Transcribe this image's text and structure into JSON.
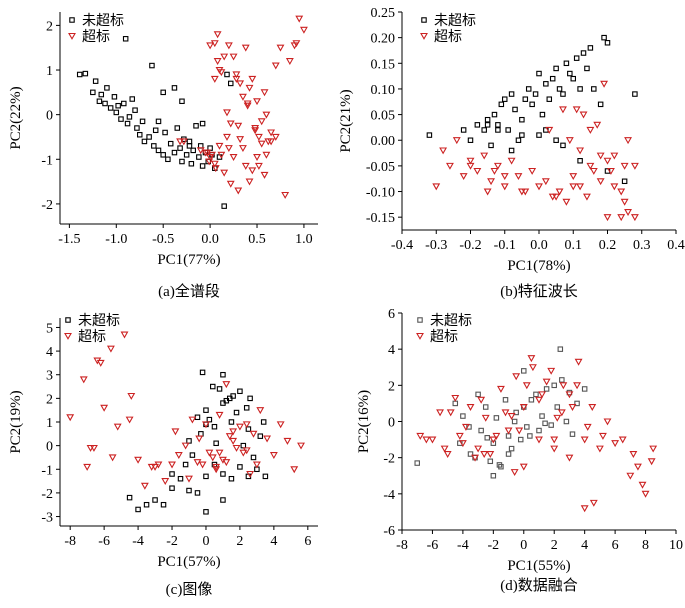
{
  "chart_data": [
    {
      "type": "scatter",
      "caption": "(a)全谱段",
      "xlabel": "PC1(77%)",
      "ylabel": "PC2(22%)",
      "xlim": [
        -1.6,
        1.15
      ],
      "ylim": [
        -2.45,
        2.3
      ],
      "xticks": [
        "-1.5",
        "-1.0",
        "-0.5",
        "0.0",
        "0.5",
        "1.0"
      ],
      "yticks": [
        "2",
        "1",
        "0",
        "-1",
        "-2"
      ],
      "legend_position": "top-left",
      "series": [
        {
          "name": "未超标",
          "color": "#000000",
          "marker": "square",
          "x": [
            -1.39,
            -1.33,
            -1.25,
            -1.22,
            -1.18,
            -1.16,
            -1.12,
            -1.1,
            -1.06,
            -1.02,
            -1.0,
            -0.98,
            -0.95,
            -0.92,
            -0.88,
            -0.86,
            -0.83,
            -0.8,
            -0.78,
            -0.75,
            -0.72,
            -0.7,
            -0.65,
            -0.6,
            -0.58,
            -0.55,
            -0.5,
            -0.48,
            -0.45,
            -0.42,
            -0.38,
            -0.35,
            -0.32,
            -0.3,
            -0.28,
            -0.25,
            -0.22,
            -0.2,
            -0.18,
            -0.15,
            -0.12,
            -0.1,
            -0.08,
            -0.05,
            -0.02,
            0.0,
            0.02,
            0.05,
            0.1,
            0.15,
            -0.9,
            -0.62,
            -0.38,
            -0.5,
            -0.22,
            0.18,
            0.22,
            -0.3,
            -0.08,
            -0.55
          ],
          "y": [
            0.9,
            0.92,
            0.5,
            0.75,
            0.3,
            0.45,
            0.25,
            0.6,
            0.15,
            0.4,
            0.05,
            0.2,
            -0.1,
            0.25,
            -0.2,
            -0.05,
            0.35,
            0.1,
            -0.3,
            -0.45,
            -0.15,
            -0.6,
            -0.5,
            -0.7,
            -0.35,
            -0.8,
            -0.9,
            -0.4,
            -1.0,
            -0.65,
            -0.85,
            -0.3,
            -0.75,
            -1.05,
            -0.55,
            -0.9,
            -0.6,
            -1.1,
            -0.8,
            -0.25,
            -0.95,
            -0.7,
            -1.15,
            -0.85,
            -1.05,
            -0.75,
            -0.9,
            -1.2,
            -0.95,
            -2.05,
            1.7,
            1.1,
            0.6,
            0.5,
            -0.7,
            0.9,
            0.7,
            0.3,
            -0.2,
            -0.15
          ]
        },
        {
          "name": "超标",
          "color": "#cc2222",
          "marker": "triangle",
          "x": [
            -0.32,
            -0.1,
            -0.05,
            0.0,
            0.05,
            0.1,
            0.12,
            0.15,
            0.18,
            0.2,
            0.22,
            0.25,
            0.28,
            0.3,
            0.32,
            0.35,
            0.38,
            0.4,
            0.42,
            0.45,
            0.48,
            0.5,
            0.52,
            0.55,
            0.58,
            0.6,
            0.62,
            0.65,
            0.7,
            0.75,
            0.8,
            0.85,
            0.9,
            0.95,
            1.0,
            -0.28,
            0.0,
            0.05,
            0.08,
            0.1,
            0.15,
            0.2,
            0.25,
            0.3,
            0.35,
            0.4,
            0.45,
            0.5,
            0.55,
            0.6,
            0.7,
            0.92,
            0.05,
            0.08,
            0.12,
            0.18,
            0.22,
            0.28,
            0.32,
            0.38,
            0.42,
            0.48,
            0.52,
            0.58,
            0.65,
            -0.03,
            -0.01,
            0.02,
            0.06
          ],
          "y": [
            -0.6,
            -0.8,
            -0.85,
            -0.95,
            -1.1,
            -0.7,
            -0.9,
            -1.3,
            -0.5,
            -0.75,
            -1.55,
            1.3,
            0.9,
            -1.7,
            0.7,
            0.4,
            1.5,
            0.2,
            0.6,
            0.8,
            -0.3,
            0.3,
            -0.5,
            -0.15,
            0.5,
            0.0,
            -0.6,
            -0.4,
            1.1,
            1.5,
            -1.8,
            1.2,
            1.55,
            2.15,
            1.9,
            -0.6,
            1.55,
            0.8,
            1.2,
            1.0,
            1.3,
            1.55,
            -0.95,
            -0.25,
            -0.75,
            0.25,
            -1.25,
            -0.95,
            -0.65,
            -0.9,
            -0.5,
            1.6,
            1.6,
            1.8,
            0.95,
            0.05,
            -0.2,
            0.8,
            -0.55,
            -1.15,
            -1.5,
            -0.35,
            -1.15,
            -1.35,
            -0.6,
            -0.85,
            -1.05,
            -0.9,
            -1.2
          ]
        }
      ]
    },
    {
      "type": "scatter",
      "caption": "(b)特征波长",
      "xlabel": "PC1(78%)",
      "ylabel": "PC2(21%)",
      "xlim": [
        -0.4,
        0.4
      ],
      "ylim": [
        -0.175,
        0.25
      ],
      "xticks": [
        "-0.4",
        "-0.3",
        "-0.2",
        "-0.1",
        "0.0",
        "0.1",
        "0.2",
        "0.3",
        "0.4"
      ],
      "yticks": [
        "0.25",
        "0.20",
        "0.15",
        "0.10",
        "0.05",
        "0.00",
        "-0.05",
        "-0.10",
        "-0.15"
      ],
      "legend_position": "top-left",
      "series": [
        {
          "name": "未超标",
          "color": "#000000",
          "marker": "square",
          "x": [
            -0.32,
            -0.22,
            -0.2,
            -0.18,
            -0.16,
            -0.15,
            -0.14,
            -0.13,
            -0.12,
            -0.11,
            -0.1,
            -0.09,
            -0.08,
            -0.07,
            -0.06,
            -0.05,
            -0.04,
            -0.03,
            -0.02,
            -0.01,
            0.0,
            0.01,
            0.02,
            0.03,
            0.04,
            0.05,
            0.06,
            0.07,
            0.08,
            0.09,
            0.1,
            0.11,
            0.12,
            0.13,
            0.14,
            0.15,
            0.16,
            0.18,
            0.19,
            0.2,
            0.28,
            -0.05,
            -0.08,
            0.0,
            0.02,
            0.05,
            -0.12,
            -0.15,
            0.07,
            0.12,
            0.2,
            0.25
          ],
          "y": [
            0.01,
            0.02,
            0.0,
            0.03,
            0.02,
            0.04,
            -0.01,
            0.05,
            0.03,
            0.07,
            0.08,
            0.02,
            0.09,
            0.06,
            0.0,
            0.04,
            0.08,
            0.1,
            0.07,
            0.09,
            0.13,
            0.05,
            0.11,
            0.08,
            0.12,
            0.14,
            0.1,
            0.09,
            0.15,
            0.13,
            0.12,
            0.16,
            0.1,
            0.17,
            0.14,
            0.18,
            0.1,
            0.07,
            0.2,
            0.19,
            0.09,
            0.01,
            -0.02,
            0.01,
            0.02,
            0.0,
            0.02,
            0.03,
            -0.01,
            -0.04,
            -0.06,
            -0.08
          ]
        },
        {
          "name": "超标",
          "color": "#cc2222",
          "marker": "triangle",
          "x": [
            -0.3,
            -0.28,
            -0.26,
            -0.24,
            -0.22,
            -0.2,
            -0.18,
            -0.16,
            -0.14,
            -0.12,
            -0.1,
            -0.08,
            -0.06,
            -0.04,
            -0.02,
            0.0,
            0.02,
            0.04,
            0.06,
            0.08,
            0.1,
            0.12,
            0.14,
            0.16,
            0.18,
            0.2,
            0.22,
            0.24,
            0.26,
            0.28,
            -0.15,
            -0.1,
            -0.05,
            0.05,
            0.1,
            0.15,
            0.2,
            0.25,
            0.19,
            0.22,
            0.25,
            0.28,
            0.03,
            0.07,
            0.11,
            0.13,
            0.17,
            0.21,
            -0.2,
            -0.13,
            0.09,
            0.12,
            0.15,
            0.18,
            0.26,
            0.24
          ],
          "y": [
            -0.09,
            -0.02,
            -0.05,
            0.0,
            -0.07,
            -0.04,
            -0.06,
            -0.03,
            -0.08,
            -0.05,
            -0.09,
            -0.04,
            -0.07,
            -0.1,
            -0.06,
            -0.09,
            -0.08,
            -0.11,
            -0.1,
            -0.12,
            -0.07,
            -0.09,
            -0.11,
            -0.06,
            -0.08,
            -0.04,
            -0.09,
            -0.1,
            -0.14,
            -0.15,
            -0.1,
            -0.07,
            -0.1,
            -0.11,
            -0.09,
            -0.05,
            -0.15,
            -0.12,
            0.11,
            -0.03,
            -0.05,
            -0.05,
            0.02,
            0.06,
            0.06,
            0.05,
            0.03,
            -0.06,
            -0.05,
            -0.06,
            0.0,
            -0.02,
            0.02,
            -0.03,
            0.0,
            -0.15
          ]
        }
      ]
    },
    {
      "type": "scatter",
      "caption": "(c)图像",
      "xlabel": "PC1(57%)",
      "ylabel": "PC2(19%)",
      "xlim": [
        -8.6,
        6.6
      ],
      "ylim": [
        -3.4,
        5.4
      ],
      "xticks": [
        "-8",
        "-6",
        "-4",
        "-2",
        "0",
        "2",
        "4",
        "6"
      ],
      "yticks": [
        "5",
        "4",
        "3",
        "2",
        "1",
        "0",
        "-1",
        "-2",
        "-3"
      ],
      "legend_position": "top-right",
      "series": [
        {
          "name": "未超标",
          "color": "#000000",
          "marker": "square",
          "x": [
            -4.5,
            -4.0,
            -3.5,
            -3.0,
            -2.5,
            -2.0,
            -1.5,
            -1.0,
            -0.5,
            0.0,
            0.5,
            1.0,
            1.5,
            2.0,
            2.5,
            3.0,
            3.5,
            -0.5,
            0.0,
            0.5,
            1.0,
            1.5,
            2.0,
            2.5,
            -1.0,
            -0.8,
            -0.3,
            0.2,
            0.8,
            1.2,
            1.8,
            2.2,
            2.8,
            3.2,
            -2.0,
            -1.2,
            0.0,
            0.6,
            1.4,
            2.4,
            -0.2,
            0.4,
            1.0,
            1.6,
            2.6,
            3.4,
            0.0,
            1.0
          ],
          "y": [
            -2.2,
            -2.7,
            -2.5,
            -2.3,
            -2.5,
            -1.8,
            -1.4,
            -1.9,
            -2.0,
            -1.3,
            -0.8,
            -1.2,
            -1.4,
            -0.9,
            -1.3,
            -1.0,
            -1.3,
            1.2,
            1.5,
            0.8,
            1.8,
            1.0,
            2.3,
            0.7,
            0.2,
            -0.4,
            0.5,
            1.1,
            2.4,
            1.9,
            1.4,
            0.0,
            -0.5,
            0.4,
            -1.2,
            -0.8,
            0.9,
            0.1,
            2.0,
            1.6,
            3.1,
            2.5,
            3.0,
            2.1,
            2.0,
            1.0,
            -2.8,
            -2.3
          ]
        },
        {
          "name": "超标",
          "color": "#cc2222",
          "marker": "triangle",
          "x": [
            -8.0,
            -7.2,
            -6.8,
            -6.4,
            -6.0,
            -5.6,
            -5.2,
            -4.8,
            -4.4,
            -4.0,
            -3.6,
            -3.2,
            -2.8,
            -2.4,
            -2.0,
            -1.6,
            -1.2,
            -0.8,
            -0.4,
            0.0,
            0.4,
            0.8,
            1.2,
            1.6,
            2.0,
            2.4,
            2.8,
            3.2,
            3.6,
            4.0,
            4.4,
            4.8,
            5.2,
            5.6,
            -7.0,
            -6.2,
            -5.5,
            -4.5,
            -3.0,
            -1.8,
            -0.5,
            0.6,
            1.4,
            2.2,
            3.0,
            -1.0,
            0.2,
            1.0,
            1.8,
            2.6,
            0.8,
            1.6,
            2.4,
            -0.2,
            0.6,
            1.2,
            -6.6
          ],
          "y": [
            1.2,
            2.8,
            -0.1,
            3.6,
            1.6,
            4.1,
            0.8,
            4.7,
            2.1,
            -0.6,
            -1.7,
            -0.9,
            -0.8,
            -1.5,
            -0.8,
            -0.4,
            0.0,
            1.1,
            0.3,
            0.9,
            -0.5,
            1.3,
            -0.7,
            0.2,
            0.8,
            -0.2,
            0.5,
            1.5,
            0.3,
            -0.4,
            0.9,
            0.2,
            -1.0,
            0.0,
            -0.9,
            3.5,
            -0.5,
            1.1,
            -0.9,
            0.6,
            -0.7,
            -1.0,
            0.4,
            -0.3,
            -0.8,
            -1.4,
            -0.3,
            -0.6,
            -0.1,
            -1.2,
            -0.3,
            0.6,
            0.9,
            -0.8,
            -0.9,
            2.6,
            -0.1
          ]
        }
      ]
    },
    {
      "type": "scatter",
      "caption": "(d)数据融合",
      "xlabel": "PC1(55%)",
      "ylabel": "PC2(16%)",
      "xlim": [
        -8,
        10
      ],
      "ylim": [
        -6,
        6
      ],
      "xticks": [
        "-8",
        "-6",
        "-4",
        "-2",
        "0",
        "2",
        "4",
        "6",
        "8",
        "10"
      ],
      "yticks": [
        "6",
        "4",
        "2",
        "0",
        "-2",
        "-4",
        "-6"
      ],
      "legend_position": "top-center",
      "series": [
        {
          "name": "未超标",
          "color": "#555555",
          "marker": "square",
          "x": [
            -7.0,
            -4.5,
            -4.0,
            -3.5,
            -3.0,
            -2.8,
            -2.5,
            -2.2,
            -2.0,
            -1.8,
            -1.5,
            -1.2,
            -1.0,
            -0.8,
            -0.5,
            -0.2,
            0.0,
            0.2,
            0.5,
            0.8,
            1.0,
            1.2,
            1.5,
            1.8,
            2.0,
            2.2,
            2.5,
            2.8,
            3.0,
            3.5,
            4.0,
            -3.2,
            -2.4,
            -1.6,
            -0.6,
            0.4,
            1.4,
            -2.0,
            -1.0,
            0.0,
            2.4,
            -4.2,
            -3.6,
            3.2
          ],
          "y": [
            -2.3,
            1.0,
            0.3,
            -1.8,
            1.5,
            -0.5,
            0.8,
            -2.2,
            -1.2,
            0.2,
            -2.5,
            1.2,
            -0.8,
            -1.5,
            0.5,
            -1.0,
            0.8,
            -0.3,
            1.2,
            1.5,
            -0.5,
            0.3,
            1.8,
            -0.2,
            2.0,
            0.8,
            2.3,
            0.0,
            1.6,
            1.0,
            1.8,
            -2.0,
            -0.9,
            -2.4,
            0.0,
            -0.8,
            -0.1,
            -3.0,
            -1.8,
            2.8,
            4.0,
            -1.2,
            -0.3,
            -0.7
          ]
        },
        {
          "name": "超标",
          "color": "#cc2222",
          "marker": "triangle",
          "x": [
            -6.8,
            -6.0,
            -5.5,
            -5.0,
            -4.5,
            -4.0,
            -3.5,
            -3.0,
            -2.5,
            -2.0,
            -1.5,
            -1.0,
            -0.5,
            0.0,
            0.5,
            1.0,
            1.5,
            2.0,
            2.5,
            3.0,
            3.5,
            4.0,
            4.5,
            5.0,
            5.5,
            6.0,
            6.5,
            7.0,
            7.5,
            8.0,
            8.5,
            -4.8,
            -3.8,
            -2.8,
            -1.8,
            -0.8,
            0.2,
            1.2,
            2.2,
            3.2,
            4.2,
            5.2,
            -5.2,
            -4.2,
            -3.2,
            -2.2,
            -1.2,
            0.0,
            1.0,
            2.0,
            3.0,
            4.0,
            0.6,
            -0.3,
            4.6,
            7.2,
            7.8,
            8.4,
            3.6,
            2.6,
            1.8,
            -0.6,
            -6.4,
            -2.6
          ],
          "y": [
            -0.8,
            -1.0,
            0.5,
            -1.8,
            1.3,
            -1.2,
            0.8,
            -1.5,
            0.2,
            -1.0,
            1.8,
            -0.5,
            2.5,
            0.8,
            3.5,
            -1.0,
            2.2,
            -1.5,
            0.5,
            -2.0,
            2.0,
            -1.0,
            0.8,
            -1.5,
            0.0,
            -1.2,
            -1.0,
            -3.0,
            -2.5,
            -4.0,
            -1.5,
            0.5,
            -0.3,
            1.2,
            -0.8,
            0.3,
            2.0,
            1.5,
            0.2,
            0.8,
            -0.3,
            -0.8,
            -1.5,
            -0.8,
            -2.0,
            -1.8,
            0.5,
            -2.5,
            1.2,
            -1.0,
            1.5,
            -4.8,
            3.0,
            -0.5,
            -4.5,
            -1.8,
            -3.5,
            -2.2,
            3.3,
            2.0,
            2.8,
            -2.8,
            -1.0,
            -1.8
          ]
        }
      ]
    }
  ]
}
